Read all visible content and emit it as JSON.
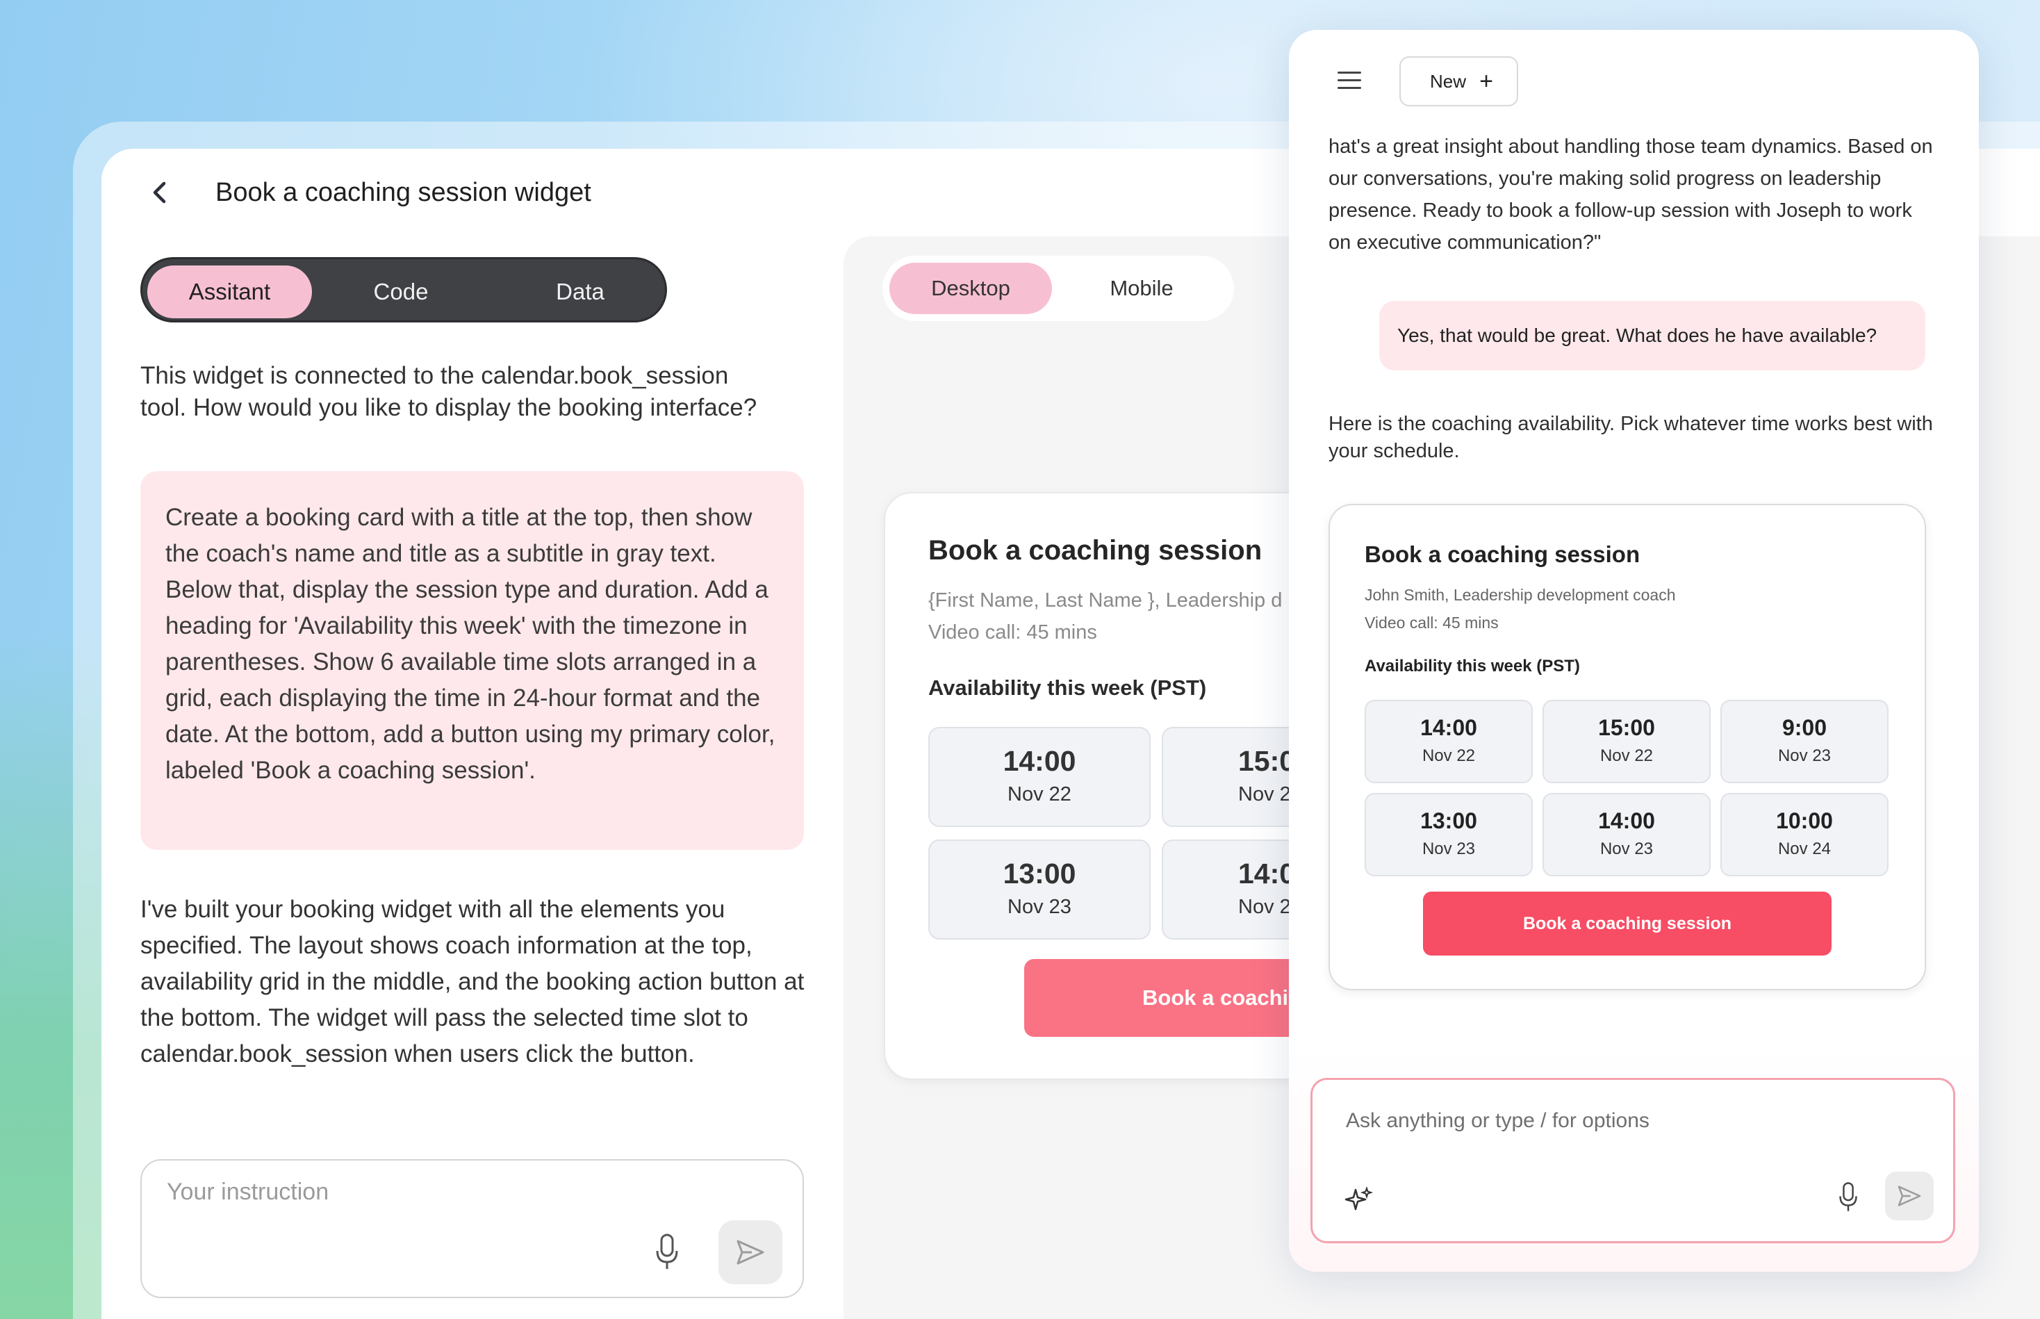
{
  "left": {
    "page_title": "Book a coaching session widget",
    "tabs": [
      {
        "label": "Assitant",
        "active": true
      },
      {
        "label": "Code",
        "active": false
      },
      {
        "label": "Data",
        "active": false
      }
    ],
    "intro_line1": "This widget is connected to the calendar.book_session",
    "intro_line2": "tool. How would you like to display the booking interface?",
    "user_prompt": "Create a booking card with a title at the top, then show the coach's name and title as a subtitle in gray text. Below that, display the session type and duration. Add a heading for 'Availability this week' with the timezone in parentheses. Show 6 available time slots arranged in a grid, each displaying the time in 24-hour format and the date. At the bottom, add a button using my primary color, labeled 'Book a coaching session'.",
    "assistant_reply": "I've built your booking widget with all the elements you specified. The layout shows coach information at the top, availability grid in the middle, and the booking action button at the bottom. The widget will pass the selected time slot to calendar.book_session when users click the button.",
    "instruction_placeholder": "Your instruction"
  },
  "preview": {
    "toggle": [
      {
        "label": "Desktop",
        "active": true
      },
      {
        "label": "Mobile",
        "active": false
      }
    ],
    "card": {
      "title": "Book a coaching session",
      "subtitle": "{First Name, Last Name }, Leadership d",
      "session": "Video call: 45 mins",
      "availability": "Availability this week (PST)",
      "slots": [
        {
          "time": "14:00",
          "date": "Nov 22"
        },
        {
          "time": "15:0",
          "date": "Nov 2"
        },
        {
          "time": "13:00",
          "date": "Nov 23"
        },
        {
          "time": "14:0",
          "date": "Nov 2"
        }
      ],
      "button": "Book a coachi"
    }
  },
  "phone": {
    "new_label": "New",
    "ai_message_top": "hat's a great insight about handling those team dynamics. Based on our conversations, you're making solid progress on leadership presence. Ready to book a follow-up session with Joseph to work on executive communication?\"",
    "user_message": "Yes, that would be great. What does he have available?",
    "ai_message_2": "Here is the coaching availability. Pick whatever time works best with your schedule.",
    "card": {
      "title": "Book a coaching session",
      "subtitle": "John Smith, Leadership development coach",
      "session": "Video call: 45 mins",
      "availability": "Availability this week (PST)",
      "slots": [
        {
          "time": "14:00",
          "date": "Nov 22"
        },
        {
          "time": "15:00",
          "date": "Nov 22"
        },
        {
          "time": "9:00",
          "date": "Nov 23"
        },
        {
          "time": "13:00",
          "date": "Nov 23"
        },
        {
          "time": "14:00",
          "date": "Nov 23"
        },
        {
          "time": "10:00",
          "date": "Nov 24"
        }
      ],
      "button": "Book a coaching session"
    },
    "ask_placeholder": "Ask anything or type / for options"
  },
  "colors": {
    "accent_pink": "#f7c0d2",
    "primary_red": "#f74d65",
    "bubble_pink": "#ffe8eb",
    "segmented_dark": "#3f4144"
  },
  "icons": [
    "back-chevron-icon",
    "microphone-icon",
    "send-icon",
    "menu-icon",
    "plus-icon",
    "sparkle-icon"
  ]
}
